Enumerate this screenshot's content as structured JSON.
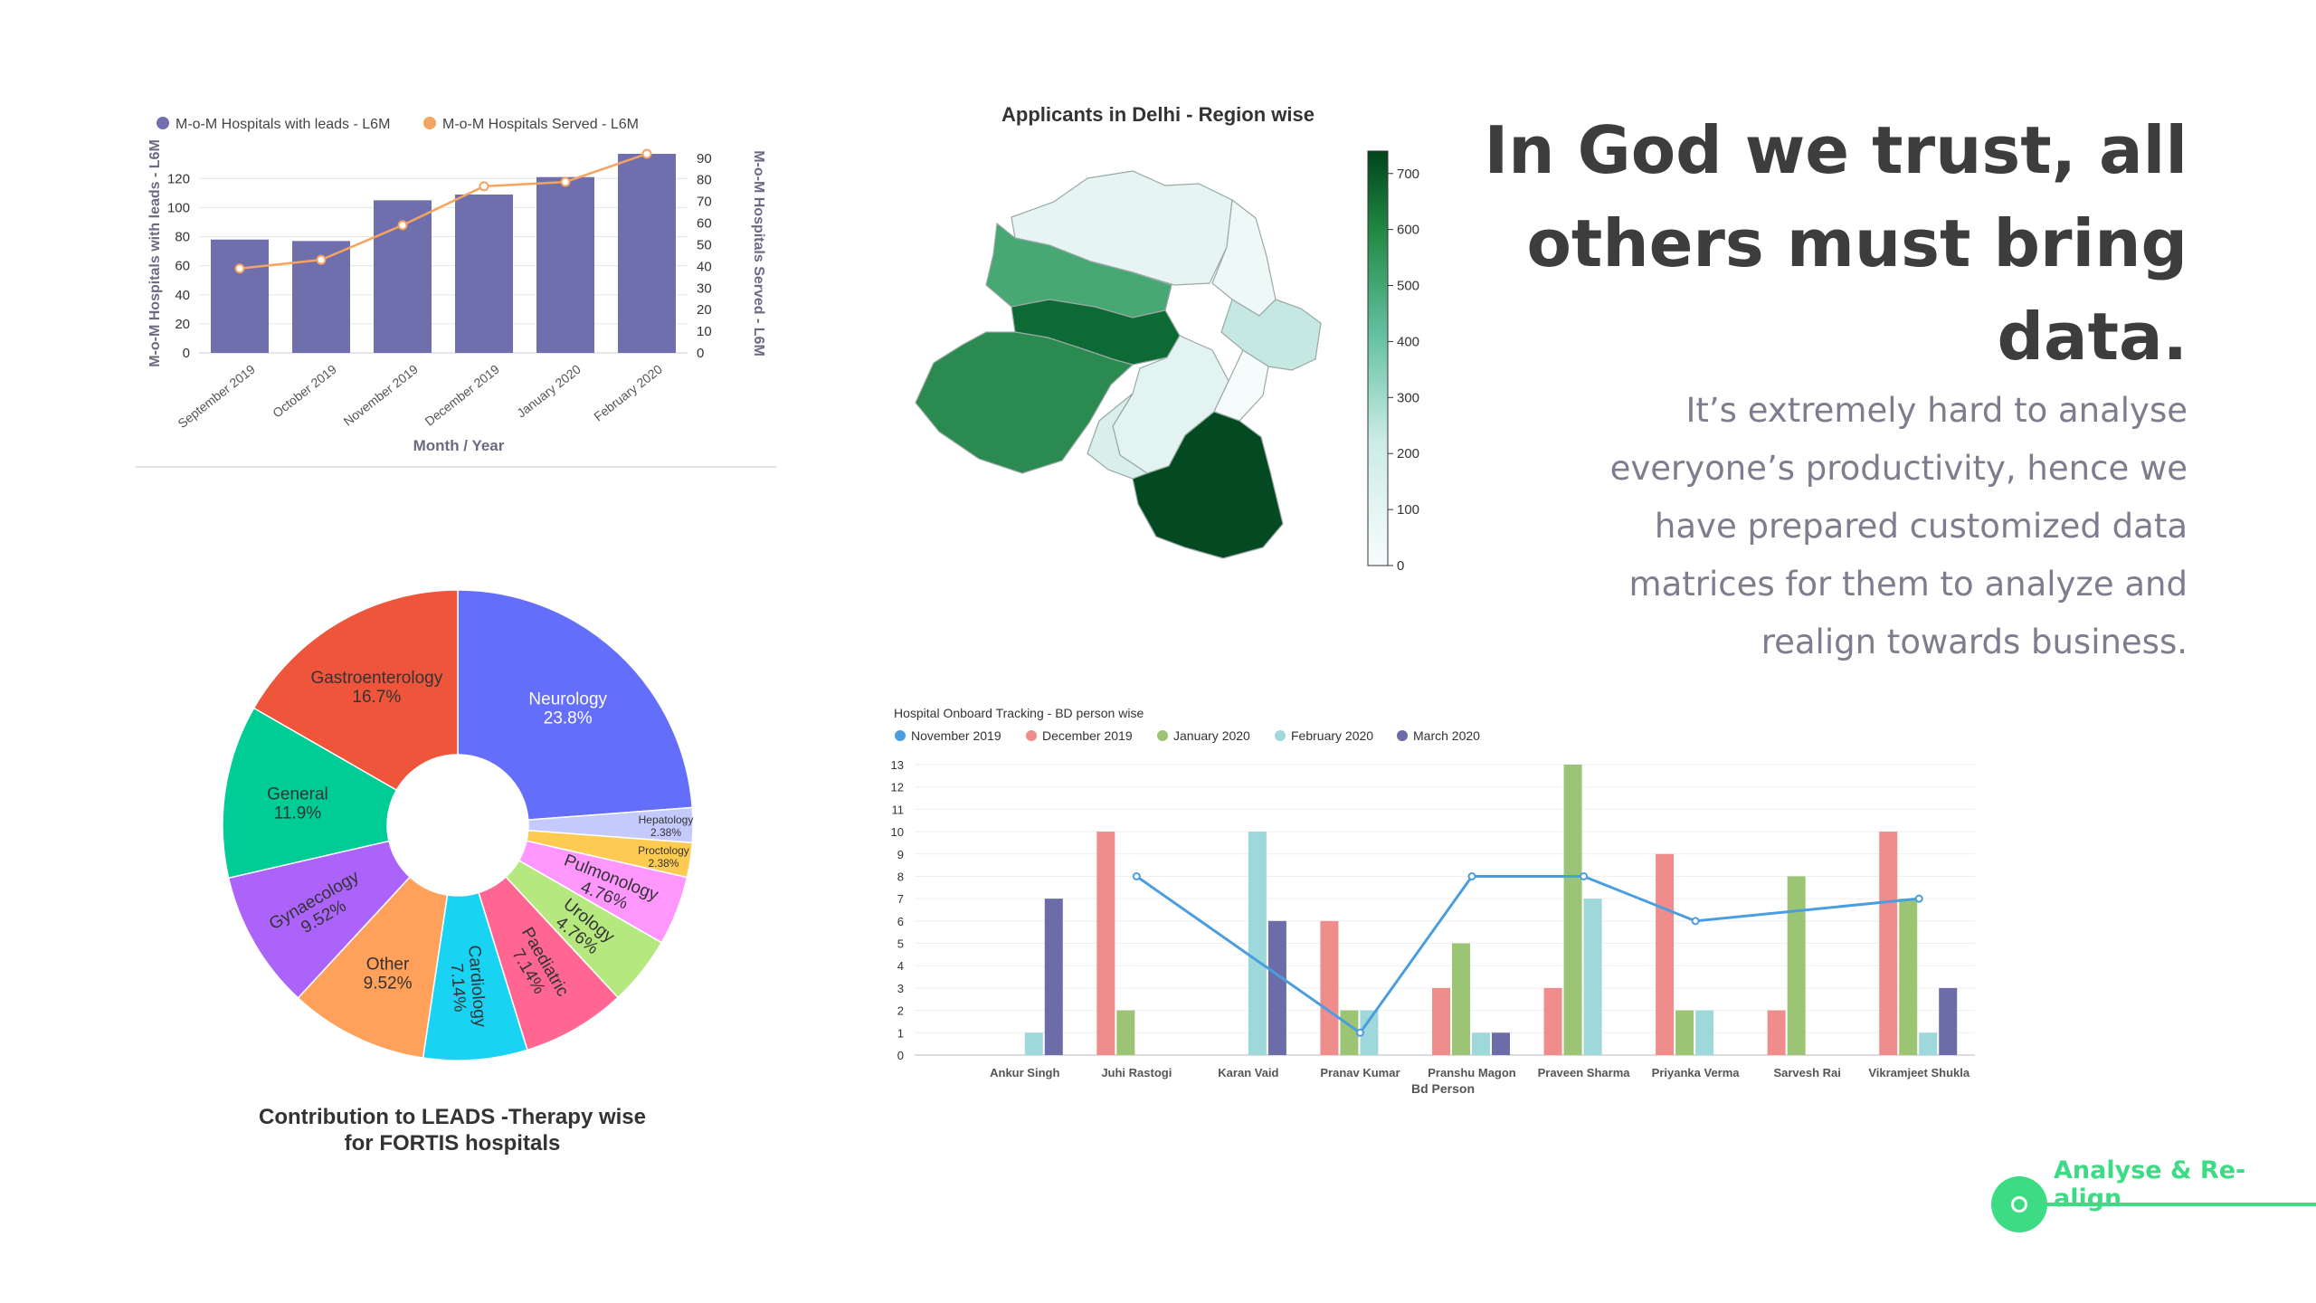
{
  "slide": {
    "headline": "In God we trust, all others must bring data.",
    "subtext": "It’s extremely hard to analyse everyone’s productivity, hence we have prepared customized data matrices for them to analyze and realign towards business.",
    "footer_label": "Analyse & Re-align",
    "accent_color": "#3ddc84"
  },
  "chart_data": [
    {
      "type": "bar",
      "legend": [
        "M-o-M Hospitals with leads - L6M",
        "M-o-M Hospitals Served - L6M"
      ],
      "categories": [
        "September 2019",
        "October 2019",
        "November 2019",
        "December 2019",
        "January 2020",
        "February 2020"
      ],
      "series": [
        {
          "name": "M-o-M Hospitals with leads - L6M",
          "type": "bar",
          "axis": "left",
          "values": [
            78,
            77,
            105,
            109,
            121,
            137
          ],
          "color": "#6f6fad"
        },
        {
          "name": "M-o-M Hospitals Served - L6M",
          "type": "line",
          "axis": "right",
          "values": [
            39,
            43,
            59,
            77,
            79,
            92
          ],
          "color": "#f4a460"
        }
      ],
      "xlabel": "Month / Year",
      "ylabel": "M-o-M Hospitals with leads - L6M",
      "y2label": "M-o-M Hospitals Served - L6M",
      "ylim": [
        0,
        137
      ],
      "y2lim": [
        0,
        92
      ],
      "yticks": [
        0,
        20,
        40,
        60,
        80,
        100,
        120
      ],
      "y2ticks": [
        0,
        10,
        20,
        30,
        40,
        50,
        60,
        70,
        80,
        90
      ]
    },
    {
      "type": "heatmap",
      "title": "Applicants in Delhi - Region wise",
      "colorbar_ticks": [
        0,
        100,
        200,
        300,
        400,
        500,
        600,
        700
      ],
      "range": [
        0,
        740
      ],
      "regions": [
        {
          "value": 40,
          "color": "#e6f5f4"
        },
        {
          "value": 380,
          "color": "#48a873"
        },
        {
          "value": 50,
          "color": "#eef8f7"
        },
        {
          "value": 680,
          "color": "#0e6a35"
        },
        {
          "value": 520,
          "color": "#2b8a50"
        },
        {
          "value": 60,
          "color": "#e3f3f2"
        },
        {
          "value": 200,
          "color": "#c5e8e2"
        },
        {
          "value": 10,
          "color": "#f6fbfb"
        },
        {
          "value": 740,
          "color": "#034a22"
        },
        {
          "value": 110,
          "color": "#d8efec"
        }
      ]
    },
    {
      "type": "pie",
      "donut": true,
      "title_lines": [
        "Contribution to LEADS -Therapy wise",
        "for FORTIS hospitals"
      ],
      "slices": [
        {
          "label": "Neurology",
          "pct_label": "23.8%",
          "value": 23.8,
          "color": "#636efa"
        },
        {
          "label": "Hepatology",
          "pct_label": "2.38%",
          "value": 2.38,
          "color": "#c5cafc"
        },
        {
          "label": "Proctology",
          "pct_label": "2.38%",
          "value": 2.38,
          "color": "#fecb52"
        },
        {
          "label": "Pulmonology",
          "pct_label": "4.76%",
          "value": 4.76,
          "color": "#ff97ff"
        },
        {
          "label": "Urology",
          "pct_label": "4.76%",
          "value": 4.76,
          "color": "#b6e880"
        },
        {
          "label": "Paediatric",
          "pct_label": "7.14%",
          "value": 7.14,
          "color": "#ff6692"
        },
        {
          "label": "Cardiology",
          "pct_label": "7.14%",
          "value": 7.14,
          "color": "#19d3f3"
        },
        {
          "label": "Other",
          "pct_label": "9.52%",
          "value": 9.52,
          "color": "#ffa15a"
        },
        {
          "label": "Gynaecology",
          "pct_label": "9.52%",
          "value": 9.52,
          "color": "#ab63fa"
        },
        {
          "label": "General",
          "pct_label": "11.9%",
          "value": 11.9,
          "color": "#00cc96"
        },
        {
          "label": "Gastroenterology",
          "pct_label": "16.7%",
          "value": 16.7,
          "color": "#ef553b"
        }
      ]
    },
    {
      "type": "bar",
      "title": "Hospital Onboard Tracking - BD person wise",
      "xlabel": "Bd Person",
      "categories": [
        "Ankur Singh",
        "Juhi Rastogi",
        "Karan Vaid",
        "Pranav Kumar",
        "Pranshu Magon",
        "Praveen Sharma",
        "Priyanka Verma",
        "Sarvesh Rai",
        "Vikramjeet Shukla"
      ],
      "ylim": [
        0,
        13
      ],
      "yticks": [
        0,
        1,
        2,
        3,
        4,
        5,
        6,
        7,
        8,
        9,
        10,
        11,
        12,
        13
      ],
      "series": [
        {
          "name": "November 2019",
          "type": "line",
          "color": "#4a9ee0",
          "values": [
            null,
            8,
            null,
            1,
            8,
            8,
            6,
            null,
            7
          ]
        },
        {
          "name": "December 2019",
          "type": "bar",
          "color": "#ef8c8c",
          "values": [
            0,
            10,
            0,
            6,
            3,
            3,
            9,
            2,
            10
          ]
        },
        {
          "name": "January 2020",
          "type": "bar",
          "color": "#9bc475",
          "values": [
            0,
            2,
            0,
            2,
            5,
            13,
            2,
            8,
            7
          ]
        },
        {
          "name": "February 2020",
          "type": "bar",
          "color": "#9ed8db",
          "values": [
            1,
            0,
            10,
            2,
            1,
            7,
            2,
            0,
            1
          ]
        },
        {
          "name": "March 2020",
          "type": "bar",
          "color": "#6c6ca8",
          "values": [
            7,
            0,
            6,
            0,
            1,
            0,
            0,
            0,
            3
          ]
        }
      ]
    }
  ]
}
